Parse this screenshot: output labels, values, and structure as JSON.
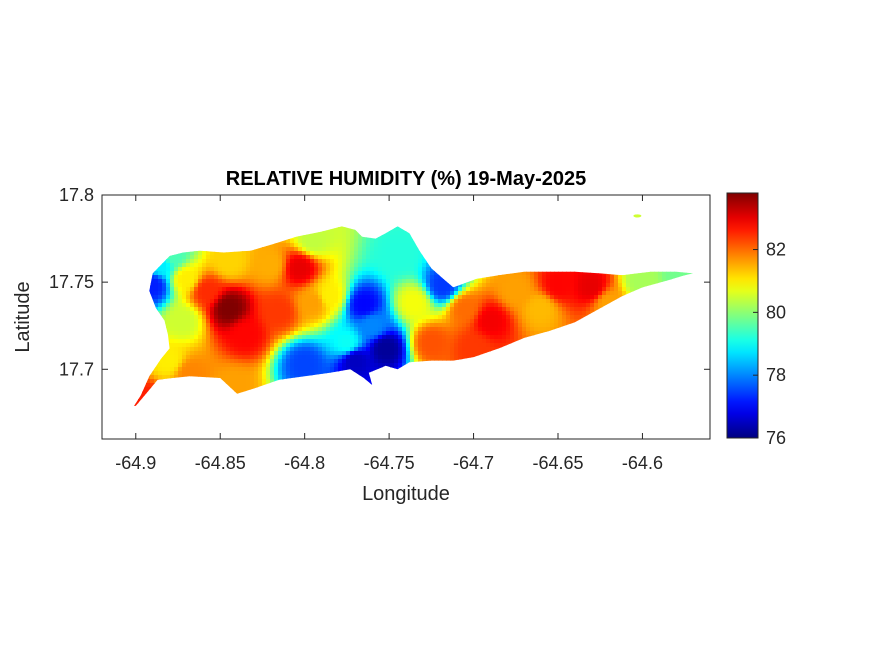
{
  "chart_data": {
    "type": "heatmap",
    "title": "RELATIVE HUMIDITY (%) 19-May-2025",
    "xlabel": "Longitude",
    "ylabel": "Latitude",
    "xlim": [
      -64.92,
      -64.56
    ],
    "ylim": [
      17.66,
      17.8
    ],
    "xticks": [
      -64.9,
      -64.85,
      -64.8,
      -64.75,
      -64.7,
      -64.65,
      -64.6
    ],
    "xtick_labels": [
      "-64.9",
      "-64.85",
      "-64.8",
      "-64.75",
      "-64.7",
      "-64.65",
      "-64.6"
    ],
    "yticks": [
      17.7,
      17.75,
      17.8
    ],
    "ytick_labels": [
      "17.7",
      "17.75",
      "17.8"
    ],
    "grid": false,
    "colormap": "jet",
    "colorbar": {
      "placement": "right",
      "range": [
        76,
        83.8
      ],
      "ticks": [
        76,
        78,
        80,
        82
      ],
      "tick_labels": [
        "76",
        "78",
        "80",
        "82"
      ]
    },
    "outline": [
      [
        -64.9,
        17.679
      ],
      [
        -64.893,
        17.687
      ],
      [
        -64.887,
        17.694
      ],
      [
        -64.878,
        17.695
      ],
      [
        -64.868,
        17.696
      ],
      [
        -64.85,
        17.695
      ],
      [
        -64.84,
        17.686
      ],
      [
        -64.83,
        17.689
      ],
      [
        -64.815,
        17.694
      ],
      [
        -64.8,
        17.696
      ],
      [
        -64.785,
        17.698
      ],
      [
        -64.773,
        17.7
      ],
      [
        -64.765,
        17.695
      ],
      [
        -64.76,
        17.691
      ],
      [
        -64.762,
        17.698
      ],
      [
        -64.752,
        17.702
      ],
      [
        -64.745,
        17.7
      ],
      [
        -64.738,
        17.704
      ],
      [
        -64.725,
        17.705
      ],
      [
        -64.712,
        17.705
      ],
      [
        -64.7,
        17.707
      ],
      [
        -64.685,
        17.712
      ],
      [
        -64.67,
        17.718
      ],
      [
        -64.655,
        17.722
      ],
      [
        -64.64,
        17.727
      ],
      [
        -64.625,
        17.735
      ],
      [
        -64.612,
        17.742
      ],
      [
        -64.6,
        17.747
      ],
      [
        -64.585,
        17.751
      ],
      [
        -64.575,
        17.754
      ],
      [
        -64.57,
        17.755
      ],
      [
        -64.58,
        17.756
      ],
      [
        -64.595,
        17.756
      ],
      [
        -64.612,
        17.754
      ],
      [
        -64.625,
        17.755
      ],
      [
        -64.64,
        17.756
      ],
      [
        -64.655,
        17.756
      ],
      [
        -64.67,
        17.756
      ],
      [
        -64.685,
        17.754
      ],
      [
        -64.698,
        17.752
      ],
      [
        -64.712,
        17.747
      ],
      [
        -64.718,
        17.752
      ],
      [
        -64.725,
        17.758
      ],
      [
        -64.732,
        17.768
      ],
      [
        -64.738,
        17.778
      ],
      [
        -64.745,
        17.782
      ],
      [
        -64.752,
        17.778
      ],
      [
        -64.758,
        17.775
      ],
      [
        -64.766,
        17.776
      ],
      [
        -64.77,
        17.78
      ],
      [
        -64.778,
        17.782
      ],
      [
        -64.79,
        17.779
      ],
      [
        -64.805,
        17.776
      ],
      [
        -64.818,
        17.772
      ],
      [
        -64.832,
        17.768
      ],
      [
        -64.848,
        17.767
      ],
      [
        -64.862,
        17.768
      ],
      [
        -64.872,
        17.767
      ],
      [
        -64.88,
        17.765
      ],
      [
        -64.885,
        17.76
      ],
      [
        -64.89,
        17.755
      ],
      [
        -64.892,
        17.745
      ],
      [
        -64.888,
        17.735
      ],
      [
        -64.883,
        17.728
      ],
      [
        -64.881,
        17.72
      ],
      [
        -64.88,
        17.712
      ],
      [
        -64.885,
        17.706
      ],
      [
        -64.892,
        17.696
      ],
      [
        -64.897,
        17.685
      ],
      [
        -64.901,
        17.679
      ]
    ],
    "samples": [
      [
        -64.89,
        17.748,
        77.2
      ],
      [
        -64.885,
        17.76,
        78.8
      ],
      [
        -64.878,
        17.765,
        79.5
      ],
      [
        -64.87,
        17.752,
        81.0
      ],
      [
        -64.872,
        17.728,
        80.5
      ],
      [
        -64.88,
        17.705,
        81.0
      ],
      [
        -64.896,
        17.682,
        82.6
      ],
      [
        -64.868,
        17.698,
        81.8
      ],
      [
        -64.858,
        17.745,
        82.5
      ],
      [
        -64.845,
        17.735,
        83.8
      ],
      [
        -64.835,
        17.72,
        82.8
      ],
      [
        -64.842,
        17.69,
        81.6
      ],
      [
        -64.815,
        17.733,
        82.4
      ],
      [
        -64.803,
        17.758,
        83.0
      ],
      [
        -64.795,
        17.738,
        81.6
      ],
      [
        -64.8,
        17.703,
        77.5
      ],
      [
        -64.785,
        17.742,
        81.0
      ],
      [
        -64.795,
        17.774,
        80.4
      ],
      [
        -64.775,
        17.715,
        79.0
      ],
      [
        -64.765,
        17.737,
        77.0
      ],
      [
        -64.77,
        17.705,
        76.5
      ],
      [
        -64.76,
        17.725,
        78.0
      ],
      [
        -64.752,
        17.712,
        76.2
      ],
      [
        -64.745,
        17.765,
        79.2
      ],
      [
        -64.718,
        17.748,
        77.4
      ],
      [
        -64.735,
        17.738,
        80.8
      ],
      [
        -64.725,
        17.715,
        82.2
      ],
      [
        -64.705,
        17.735,
        82.0
      ],
      [
        -64.69,
        17.728,
        82.9
      ],
      [
        -64.7,
        17.712,
        82.4
      ],
      [
        -64.675,
        17.745,
        81.6
      ],
      [
        -64.66,
        17.735,
        81.4
      ],
      [
        -64.65,
        17.748,
        82.8
      ],
      [
        -64.63,
        17.747,
        83.0
      ],
      [
        -64.62,
        17.738,
        81.6
      ],
      [
        -64.6,
        17.75,
        80.2
      ],
      [
        -64.578,
        17.754,
        79.8
      ],
      [
        -64.82,
        17.76,
        81.5
      ],
      [
        -64.845,
        17.762,
        81.2
      ]
    ],
    "islets": [
      [
        -64.603,
        17.788,
        80.5
      ]
    ]
  }
}
